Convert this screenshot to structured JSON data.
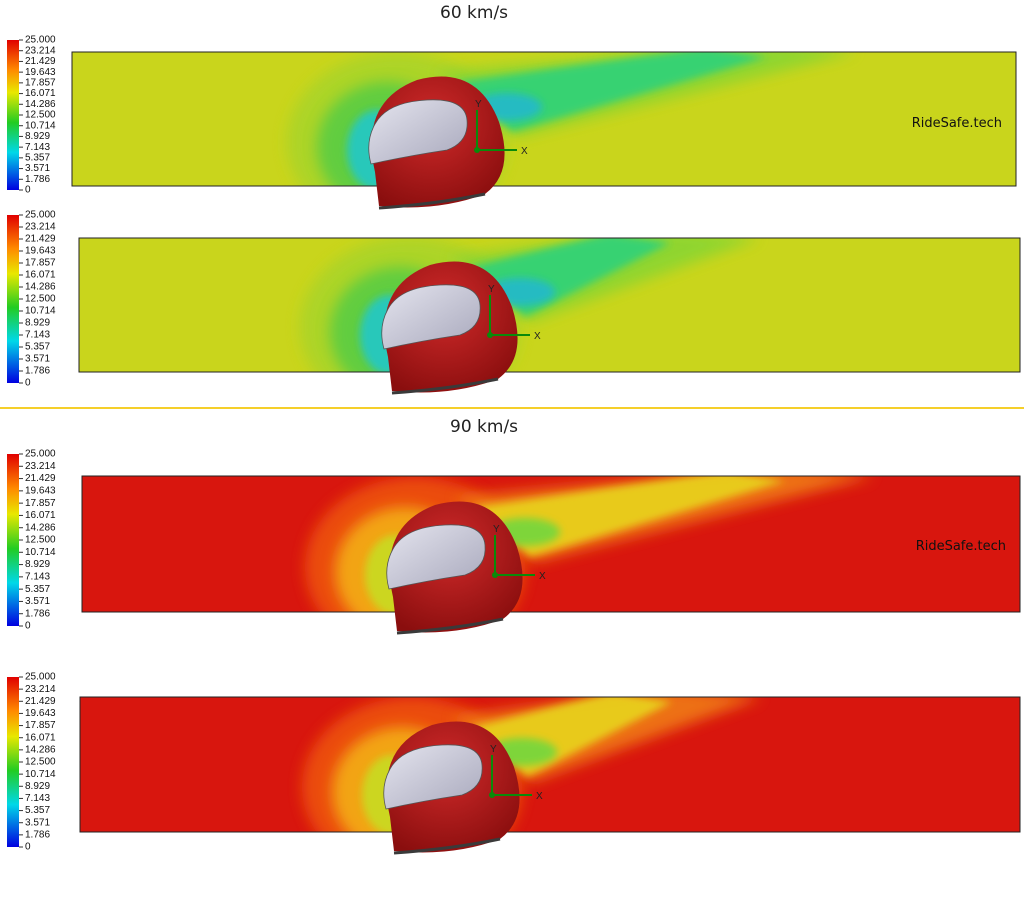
{
  "sections": [
    {
      "title": "60 km/s",
      "panels": [
        {
          "legend": [
            "25.000",
            "23.214",
            "21.429",
            "19.643",
            "17.857",
            "16.071",
            "14.286",
            "12.500",
            "10.714",
            "8.929",
            "7.143",
            "5.357",
            "3.571",
            "1.786",
            "0"
          ],
          "watermark": "RideSafe.tech",
          "axes": [
            "Y",
            "X"
          ]
        },
        {
          "legend": [
            "25.000",
            "23.214",
            "21.429",
            "19.643",
            "17.857",
            "16.071",
            "14.286",
            "12.500",
            "10.714",
            "8.929",
            "7.143",
            "5.357",
            "3.571",
            "1.786",
            "0"
          ],
          "axes": [
            "Y",
            "X"
          ]
        }
      ]
    },
    {
      "title": "90 km/s",
      "panels": [
        {
          "legend": [
            "25.000",
            "23.214",
            "21.429",
            "19.643",
            "17.857",
            "16.071",
            "14.286",
            "12.500",
            "10.714",
            "8.929",
            "7.143",
            "5.357",
            "3.571",
            "1.786",
            "0"
          ],
          "watermark": "RideSafe.tech",
          "axes": [
            "Y",
            "X"
          ]
        },
        {
          "legend": [
            "25.000",
            "23.214",
            "21.429",
            "19.643",
            "17.857",
            "16.071",
            "14.286",
            "12.500",
            "10.714",
            "8.929",
            "7.143",
            "5.357",
            "3.571",
            "1.786",
            "0"
          ],
          "axes": [
            "Y",
            "X"
          ]
        }
      ]
    }
  ]
}
